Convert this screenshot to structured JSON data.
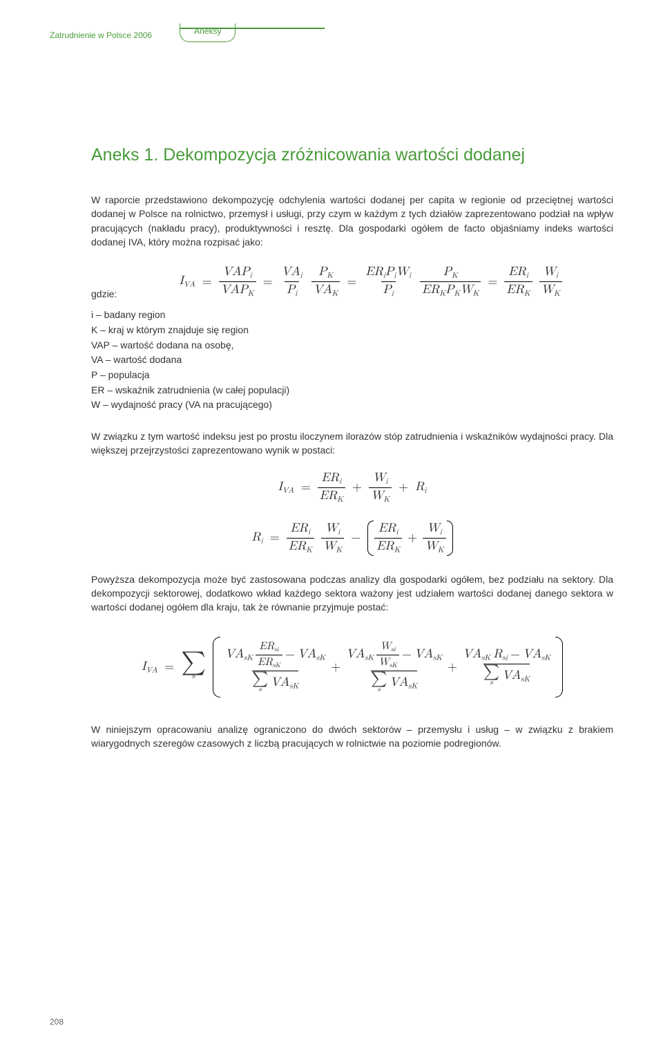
{
  "header": {
    "doc_title": "Zatrudnienie w Polsce 2006",
    "section": "Aneksy"
  },
  "title": "Aneks 1. Dekompozycja zróżnicowania wartości dodanej",
  "para1": "W raporcie przedstawiono dekompozycję odchylenia wartości dodanej per capita w regionie od przeciętnej wartości dodanej w Polsce na rolnictwo, przemysł i usługi, przy czym w każdym z tych działów zaprezentowano podział na wpływ pracujących (nakładu pracy), produktywności i resztę. Dla gospodarki ogółem de facto objaśniamy indeks wartości dodanej IVA, który można rozpisać jako:",
  "where": "gdzie:",
  "defs": [
    "i – badany region",
    "K – kraj w którym znajduje się region",
    "VAP – wartość dodana na osobę,",
    "VA – wartość dodana",
    "P – populacja",
    "ER – wskaźnik zatrudnienia (w całej populacji)",
    "W – wydajność pracy (VA na pracującego)"
  ],
  "para2": "W związku z tym wartość indeksu jest po prostu iloczynem ilorazów stóp zatrudnienia i wskaźników wydajności pracy. Dla większej przejrzystości zaprezentowano wynik w postaci:",
  "para3": "Powyższa dekompozycja może być zastosowana podczas analizy dla gospodarki ogółem, bez podziału na sektory. Dla dekompozycji sektorowej, dodatkowo wkład każdego sektora ważony jest udziałem wartości dodanej danego sektora w wartości dodanej ogółem dla kraju, tak że równanie przyjmuje postać:",
  "para4": "W niniejszym opracowaniu analizę ograniczono do dwóch sektorów – przemysłu i usług – w związku z brakiem wiarygodnych szeregów czasowych z liczbą pracujących w rolnictwie na poziomie podregionów.",
  "pagenum": "208",
  "colors": {
    "accent": "#4a9b3a",
    "text": "#333333",
    "bg": "#ffffff"
  },
  "math": {
    "I": "I",
    "VA": "VA",
    "VAP": "VAP",
    "P": "P",
    "ER": "ER",
    "W": "W",
    "R": "R",
    "sub_i": "i",
    "sub_K": "K",
    "sub_VA": "VA",
    "sub_s": "s",
    "sub_si": "si",
    "sub_sK": "sK",
    "eq": "=",
    "plus": "+",
    "minus": "−",
    "sigma": "∑"
  }
}
